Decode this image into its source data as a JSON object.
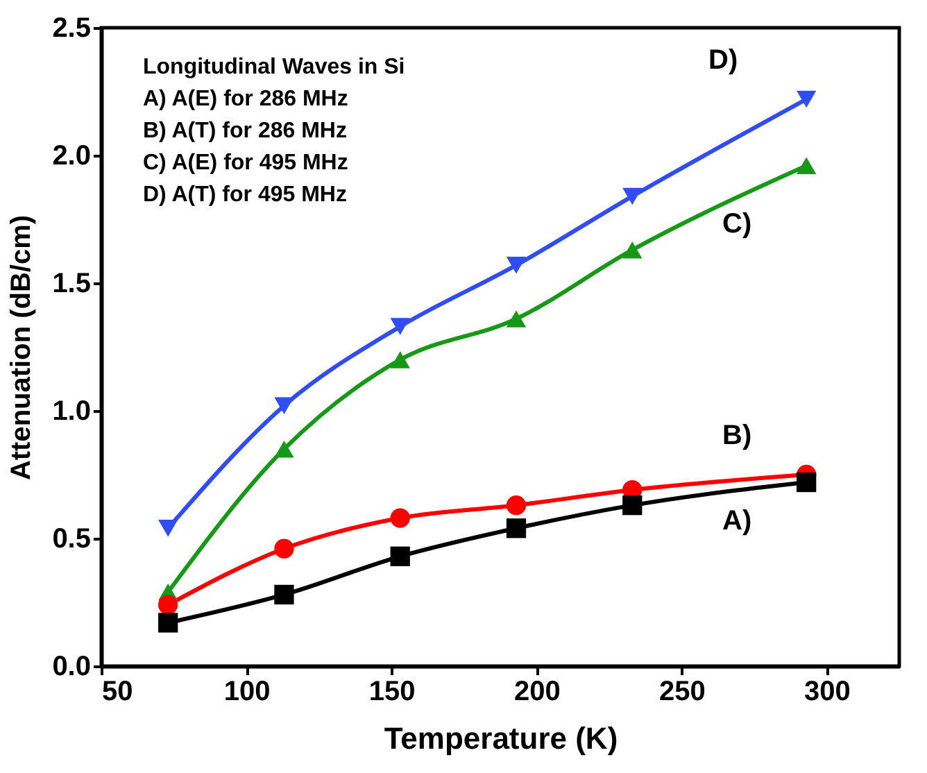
{
  "chart_data": {
    "type": "line",
    "xlabel": "Temperature (K)",
    "ylabel": "Attenuation (dB/cm)",
    "x": [
      73,
      113,
      153,
      193,
      233,
      293
    ],
    "xlim": [
      50,
      325
    ],
    "xticks": [
      50,
      100,
      150,
      200,
      250,
      300
    ],
    "ylim": [
      0,
      2.5
    ],
    "yticks": [
      {
        "value": 0,
        "label": "0.0"
      },
      0.5,
      {
        "value": 1,
        "label": "1.0"
      },
      1.5,
      {
        "value": 2,
        "label": "2.0"
      },
      2.5
    ],
    "grid": false,
    "annotations": [
      "Longitudinal Waves in Si",
      "A) A(E) for 286 MHz",
      "B) A(T) for 286 MHz",
      "C) A(E) for 495 MHz",
      "D) A(T) for 495 MHz"
    ],
    "series": [
      {
        "name": "A)",
        "color": "#000000",
        "marker": "square",
        "values": [
          0.17,
          0.28,
          0.43,
          0.54,
          0.63,
          0.72
        ]
      },
      {
        "name": "B)",
        "color": "#ff0000",
        "marker": "circle",
        "values": [
          0.24,
          0.46,
          0.58,
          0.63,
          0.69,
          0.75
        ]
      },
      {
        "name": "C)",
        "color": "#169a16",
        "marker": "triangle",
        "values": [
          0.29,
          0.85,
          1.2,
          1.36,
          1.63,
          1.96
        ]
      },
      {
        "name": "D)",
        "color": "#2f4cf5",
        "marker": "triangle-down",
        "values": [
          0.54,
          1.02,
          1.33,
          1.57,
          1.84,
          2.22
        ]
      }
    ]
  }
}
